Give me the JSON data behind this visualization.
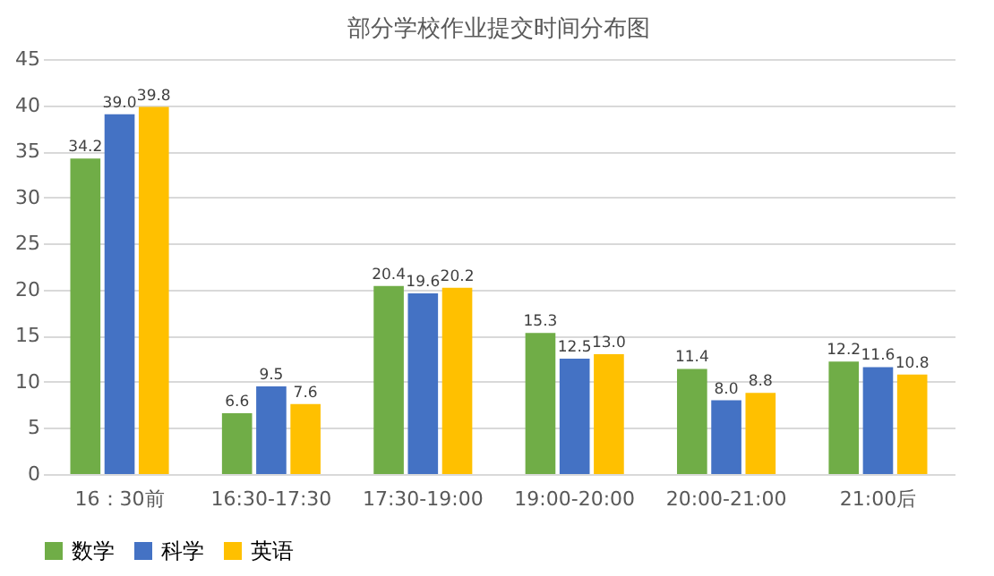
{
  "chart_data": {
    "type": "bar",
    "title": "部分学校作业提交时间分布图",
    "categories": [
      "16：30前",
      "16:30-17:30",
      "17:30-19:00",
      "19:00-20:00",
      "20:00-21:00",
      "21:00后"
    ],
    "series": [
      {
        "name": "数学",
        "color": "#70ad47",
        "values": [
          34.2,
          6.6,
          20.4,
          15.3,
          11.4,
          12.2
        ],
        "value_labels": [
          "34.2",
          "6.6",
          "20.4",
          "15.3",
          "11.4",
          "12.2"
        ]
      },
      {
        "name": "科学",
        "color": "#4472c4",
        "values": [
          39.0,
          9.5,
          19.6,
          12.5,
          8.0,
          11.6
        ],
        "value_labels": [
          "39.0",
          "9.5",
          "19.6",
          "12.5",
          "8.0",
          "11.6"
        ]
      },
      {
        "name": "英语",
        "color": "#ffc000",
        "values": [
          39.8,
          7.6,
          20.2,
          13.0,
          8.8,
          10.8
        ],
        "value_labels": [
          "39.8",
          "7.6",
          "20.2",
          "13.0",
          "8.8",
          "10.8"
        ]
      }
    ],
    "ylim": [
      0,
      45
    ],
    "yticks": [
      0,
      5,
      10,
      15,
      20,
      25,
      30,
      35,
      40,
      45
    ],
    "grid": "y",
    "legend": "bottom"
  }
}
